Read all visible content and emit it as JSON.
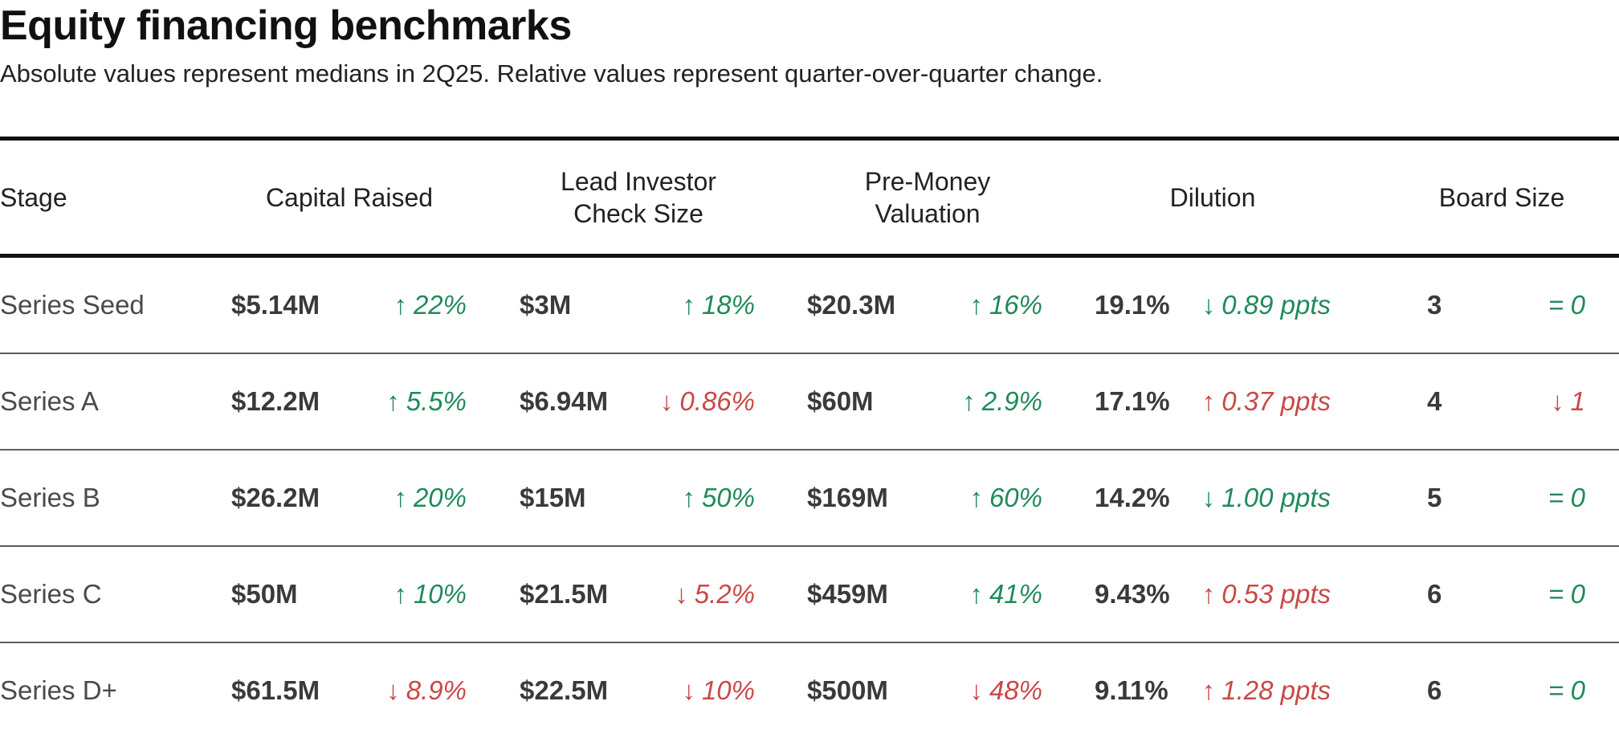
{
  "title": "Equity financing benchmarks",
  "subtitle": "Absolute values represent medians in 2Q25. Relative values represent quarter-over-quarter change.",
  "colors": {
    "positive": "#1f8a5a",
    "negative": "#c94846",
    "rule": "#111111",
    "row_divider": "#5c5c5c"
  },
  "headers": {
    "stage": "Stage",
    "capital_raised": "Capital Raised",
    "lead_check_line1": "Lead Investor",
    "lead_check_line2": "Check Size",
    "premoney_line1": "Pre-Money",
    "premoney_line2": "Valuation",
    "dilution": "Dilution",
    "board_size": "Board Size"
  },
  "chart_data": {
    "type": "table",
    "title": "Equity financing benchmarks",
    "subtitle": "Absolute values represent medians in 2Q25. Relative values represent quarter-over-quarter change.",
    "columns": [
      "Stage",
      "Capital Raised",
      "Lead Investor Check Size",
      "Pre-Money Valuation",
      "Dilution",
      "Board Size"
    ],
    "rows": [
      {
        "stage": "Series Seed",
        "capital": {
          "value": "$5.14M",
          "arrow": "↑",
          "change": "22%",
          "tone": "up-good"
        },
        "check": {
          "value": "$3M",
          "arrow": "↑",
          "change": "18%",
          "tone": "up-good"
        },
        "premoney": {
          "value": "$20.3M",
          "arrow": "↑",
          "change": "16%",
          "tone": "up-good"
        },
        "dilution": {
          "value": "19.1%",
          "arrow": "↓",
          "change": "0.89 ppts",
          "tone": "down-good"
        },
        "board": {
          "value": "3",
          "arrow": "=",
          "change": "0",
          "tone": "eq"
        }
      },
      {
        "stage": "Series A",
        "capital": {
          "value": "$12.2M",
          "arrow": "↑",
          "change": "5.5%",
          "tone": "up-good"
        },
        "check": {
          "value": "$6.94M",
          "arrow": "↓",
          "change": "0.86%",
          "tone": "down-bad"
        },
        "premoney": {
          "value": "$60M",
          "arrow": "↑",
          "change": "2.9%",
          "tone": "up-good"
        },
        "dilution": {
          "value": "17.1%",
          "arrow": "↑",
          "change": "0.37 ppts",
          "tone": "up-bad"
        },
        "board": {
          "value": "4",
          "arrow": "↓",
          "change": "1",
          "tone": "down-bad"
        }
      },
      {
        "stage": "Series B",
        "capital": {
          "value": "$26.2M",
          "arrow": "↑",
          "change": "20%",
          "tone": "up-good"
        },
        "check": {
          "value": "$15M",
          "arrow": "↑",
          "change": "50%",
          "tone": "up-good"
        },
        "premoney": {
          "value": "$169M",
          "arrow": "↑",
          "change": "60%",
          "tone": "up-good"
        },
        "dilution": {
          "value": "14.2%",
          "arrow": "↓",
          "change": "1.00 ppts",
          "tone": "down-good"
        },
        "board": {
          "value": "5",
          "arrow": "=",
          "change": "0",
          "tone": "eq"
        }
      },
      {
        "stage": "Series C",
        "capital": {
          "value": "$50M",
          "arrow": "↑",
          "change": "10%",
          "tone": "up-good"
        },
        "check": {
          "value": "$21.5M",
          "arrow": "↓",
          "change": "5.2%",
          "tone": "down-bad"
        },
        "premoney": {
          "value": "$459M",
          "arrow": "↑",
          "change": "41%",
          "tone": "up-good"
        },
        "dilution": {
          "value": "9.43%",
          "arrow": "↑",
          "change": "0.53 ppts",
          "tone": "up-bad"
        },
        "board": {
          "value": "6",
          "arrow": "=",
          "change": "0",
          "tone": "eq"
        }
      },
      {
        "stage": "Series D+",
        "capital": {
          "value": "$61.5M",
          "arrow": "↓",
          "change": "8.9%",
          "tone": "down-bad"
        },
        "check": {
          "value": "$22.5M",
          "arrow": "↓",
          "change": "10%",
          "tone": "down-bad"
        },
        "premoney": {
          "value": "$500M",
          "arrow": "↓",
          "change": "48%",
          "tone": "down-bad"
        },
        "dilution": {
          "value": "9.11%",
          "arrow": "↑",
          "change": "1.28 ppts",
          "tone": "up-bad"
        },
        "board": {
          "value": "6",
          "arrow": "=",
          "change": "0",
          "tone": "eq"
        }
      }
    ]
  }
}
